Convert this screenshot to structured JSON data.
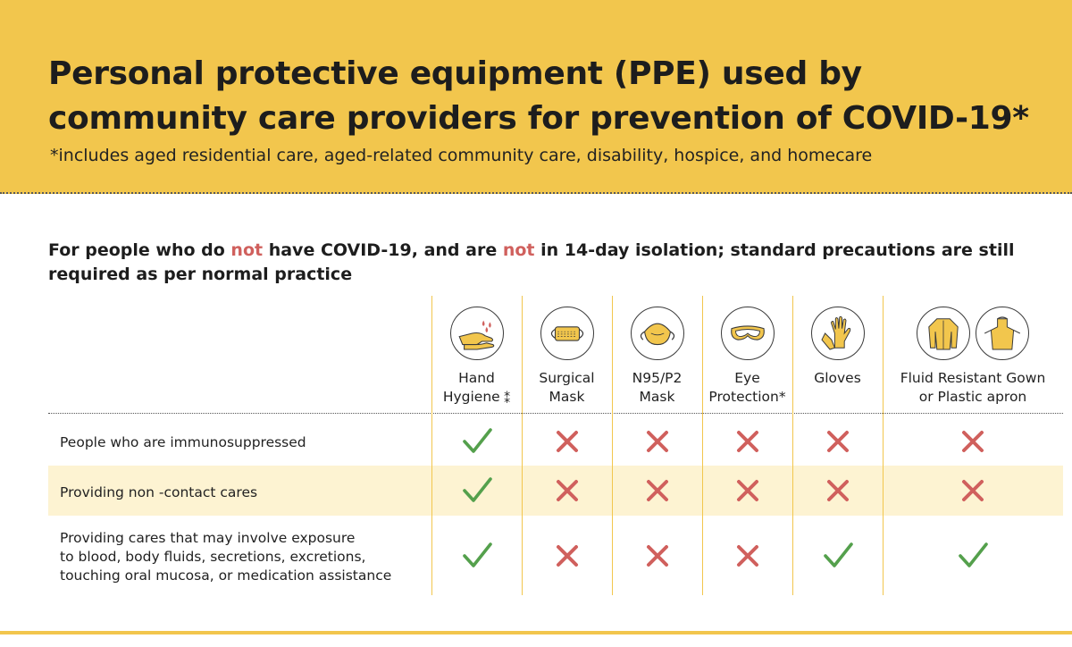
{
  "header": {
    "title_line1": "Personal protective equipment (PPE) used by",
    "title_line2": "community care providers for prevention of COVID-19*",
    "subtitle": "*includes aged residential care, aged-related community care, disability, hospice, and homecare"
  },
  "section": {
    "heading_part1": "For people who do ",
    "heading_not1": "not",
    "heading_part2": " have COVID-19, and are ",
    "heading_not2": "not",
    "heading_part3": " in 14-day isolation; standard precautions are still",
    "heading_line2": "required as per normal practice"
  },
  "columns": [
    {
      "line1": "Hand",
      "line2": "Hygiene",
      "suffix": "⁑",
      "icons": [
        "hand-washing-icon"
      ]
    },
    {
      "line1": "Surgical",
      "line2": "Mask",
      "icons": [
        "surgical-mask-icon"
      ]
    },
    {
      "line1": "N95/P2",
      "line2": "Mask",
      "icons": [
        "n95-mask-icon"
      ]
    },
    {
      "line1": "Eye",
      "line2": "Protection*",
      "icons": [
        "goggles-icon"
      ]
    },
    {
      "line1": "Gloves",
      "line2": "",
      "icons": [
        "gloves-icon"
      ]
    },
    {
      "line1": "Fluid Resistant Gown",
      "line2": "or Plastic apron",
      "icons": [
        "gown-icon",
        "apron-icon"
      ]
    }
  ],
  "rows": [
    {
      "line1": "People who are immunosuppressed",
      "line2": "",
      "line3": "",
      "marks": [
        "check",
        "cross",
        "cross",
        "cross",
        "cross",
        "cross"
      ]
    },
    {
      "line1": "Providing non -contact cares",
      "line2": "",
      "line3": "",
      "marks": [
        "check",
        "cross",
        "cross",
        "cross",
        "cross",
        "cross"
      ]
    },
    {
      "line1": "Providing cares that may involve exposure",
      "line2": "to blood, body fluids, secretions, excretions,",
      "line3": "touching oral mucosa, or medication assistance",
      "marks": [
        "check",
        "cross",
        "cross",
        "cross",
        "check",
        "check"
      ]
    }
  ],
  "colors": {
    "header_bg": "#f2c64d",
    "check": "#54a04c",
    "cross": "#d0605d",
    "icon_fill": "#f2c64d",
    "row_shade": "#fdf3d2"
  }
}
